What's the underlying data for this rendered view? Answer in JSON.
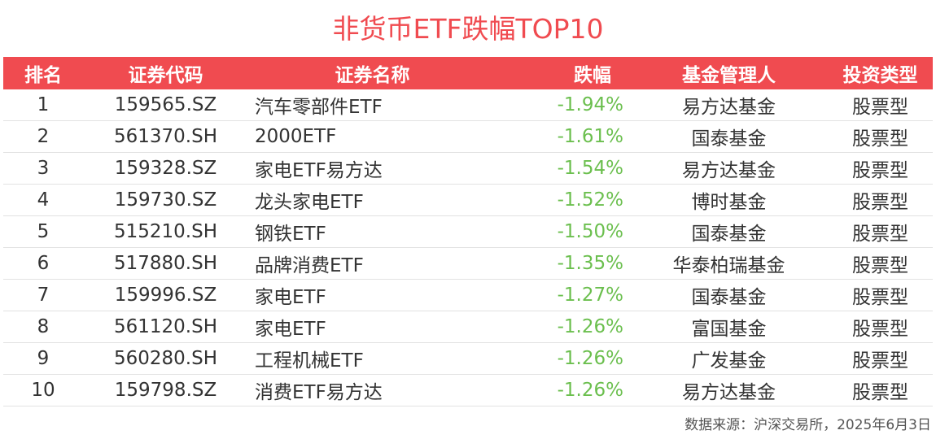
{
  "title": "非货币ETF跌幅TOP10",
  "columns": [
    "排名",
    "证券代码",
    "证券名称",
    "跌幅",
    "基金管理人",
    "投资类型"
  ],
  "rows": [
    [
      "1",
      "159565.SZ",
      "汽车零部件ETF",
      "-1.94%",
      "易方达基金",
      "股票型"
    ],
    [
      "2",
      "561370.SH",
      "2000ETF",
      "-1.61%",
      "国泰基金",
      "股票型"
    ],
    [
      "3",
      "159328.SZ",
      "家电ETF易方达",
      "-1.54%",
      "易方达基金",
      "股票型"
    ],
    [
      "4",
      "159730.SZ",
      "龙头家电ETF",
      "-1.52%",
      "博时基金",
      "股票型"
    ],
    [
      "5",
      "515210.SH",
      "钢铁ETF",
      "-1.50%",
      "国泰基金",
      "股票型"
    ],
    [
      "6",
      "517880.SH",
      "品牌消费ETF",
      "-1.35%",
      "华泰柏瑞基金",
      "股票型"
    ],
    [
      "7",
      "159996.SZ",
      "家电ETF",
      "-1.27%",
      "国泰基金",
      "股票型"
    ],
    [
      "8",
      "561120.SH",
      "家电ETF",
      "-1.26%",
      "富国基金",
      "股票型"
    ],
    [
      "9",
      "560280.SH",
      "工程机械ETF",
      "-1.26%",
      "广发基金",
      "股票型"
    ],
    [
      "10",
      "159798.SZ",
      "消费ETF易方达",
      "-1.26%",
      "易方达基金",
      "股票型"
    ]
  ],
  "source": "数据来源：沪深交易所，2025年6月3日",
  "colors": {
    "header_bg": "#f04b50",
    "title": "#f04b50",
    "negative": "#6bbf4e"
  },
  "chart_data": {
    "type": "table",
    "title": "非货币ETF跌幅TOP10",
    "columns": [
      "排名",
      "证券代码",
      "证券名称",
      "跌幅",
      "基金管理人",
      "投资类型"
    ],
    "rows": [
      [
        "1",
        "159565.SZ",
        "汽车零部件ETF",
        "-1.94%",
        "易方达基金",
        "股票型"
      ],
      [
        "2",
        "561370.SH",
        "2000ETF",
        "-1.61%",
        "国泰基金",
        "股票型"
      ],
      [
        "3",
        "159328.SZ",
        "家电ETF易方达",
        "-1.54%",
        "易方达基金",
        "股票型"
      ],
      [
        "4",
        "159730.SZ",
        "龙头家电ETF",
        "-1.52%",
        "博时基金",
        "股票型"
      ],
      [
        "5",
        "515210.SH",
        "钢铁ETF",
        "-1.50%",
        "国泰基金",
        "股票型"
      ],
      [
        "6",
        "517880.SH",
        "品牌消费ETF",
        "-1.35%",
        "华泰柏瑞基金",
        "股票型"
      ],
      [
        "7",
        "159996.SZ",
        "家电ETF",
        "-1.27%",
        "国泰基金",
        "股票型"
      ],
      [
        "8",
        "561120.SH",
        "家电ETF",
        "-1.26%",
        "富国基金",
        "股票型"
      ],
      [
        "9",
        "560280.SH",
        "工程机械ETF",
        "-1.26%",
        "广发基金",
        "股票型"
      ],
      [
        "10",
        "159798.SZ",
        "消费ETF易方达",
        "-1.26%",
        "易方达基金",
        "股票型"
      ]
    ],
    "source": "数据来源：沪深交易所，2025年6月3日"
  }
}
